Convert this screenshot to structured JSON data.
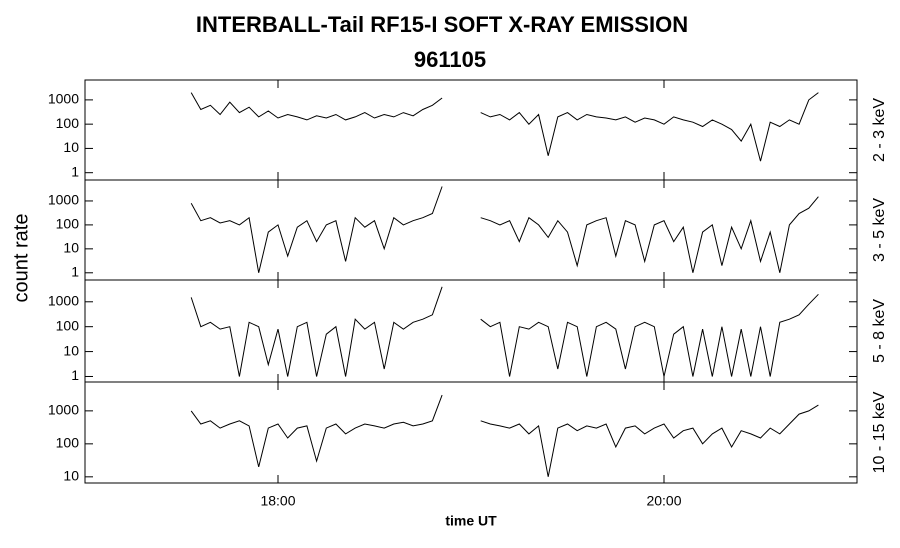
{
  "chart_data": [
    {
      "type": "line",
      "title": "INTERBALL-Tail RF15-I SOFT X-RAY EMISSION",
      "subtitle": "961105",
      "ylabel": "count rate",
      "label": "2 - 3 keV",
      "color": "#000000",
      "log": true,
      "xlim": [
        17,
        21
      ],
      "ylim": [
        0.5,
        6600
      ],
      "yticks": [
        1,
        10,
        100,
        1000
      ],
      "x": [
        17.55,
        17.6,
        17.65,
        17.7,
        17.75,
        17.8,
        17.85,
        17.9,
        17.95,
        18,
        18.05,
        18.1,
        18.15,
        18.2,
        18.25,
        18.3,
        18.35,
        18.4,
        18.45,
        18.5,
        18.55,
        18.6,
        18.65,
        18.7,
        18.75,
        18.8,
        18.85,
        18.95,
        19.05,
        19.1,
        19.15,
        19.2,
        19.25,
        19.3,
        19.35,
        19.4,
        19.45,
        19.5,
        19.55,
        19.6,
        19.65,
        19.7,
        19.75,
        19.8,
        19.85,
        19.9,
        19.95,
        20,
        20.05,
        20.1,
        20.15,
        20.2,
        20.25,
        20.3,
        20.35,
        20.4,
        20.45,
        20.5,
        20.55,
        20.6,
        20.65,
        20.7,
        20.75,
        20.8
      ],
      "values": [
        2000,
        400,
        600,
        250,
        800,
        300,
        500,
        200,
        350,
        180,
        250,
        200,
        150,
        220,
        180,
        250,
        150,
        200,
        300,
        180,
        250,
        200,
        300,
        220,
        400,
        600,
        1200,
        null,
        300,
        200,
        250,
        150,
        300,
        100,
        250,
        5,
        200,
        300,
        150,
        250,
        200,
        180,
        150,
        200,
        120,
        180,
        150,
        100,
        200,
        150,
        120,
        80,
        150,
        100,
        60,
        20,
        100,
        3,
        120,
        80,
        150,
        100,
        1000,
        2000
      ]
    },
    {
      "type": "line",
      "label": "3 - 5 keV",
      "color": "#000000",
      "log": true,
      "xlim": [
        17,
        21
      ],
      "ylim": [
        0.5,
        7500
      ],
      "yticks": [
        1,
        10,
        100,
        1000
      ],
      "x": [
        17.55,
        17.6,
        17.65,
        17.7,
        17.75,
        17.8,
        17.85,
        17.9,
        17.95,
        18,
        18.05,
        18.1,
        18.15,
        18.2,
        18.25,
        18.3,
        18.35,
        18.4,
        18.45,
        18.5,
        18.55,
        18.6,
        18.65,
        18.7,
        18.75,
        18.8,
        18.85,
        18.95,
        19.05,
        19.1,
        19.15,
        19.2,
        19.25,
        19.3,
        19.35,
        19.4,
        19.45,
        19.5,
        19.55,
        19.6,
        19.65,
        19.7,
        19.75,
        19.8,
        19.85,
        19.9,
        19.95,
        20,
        20.05,
        20.1,
        20.15,
        20.2,
        20.25,
        20.3,
        20.35,
        20.4,
        20.45,
        20.5,
        20.55,
        20.6,
        20.65,
        20.7,
        20.75,
        20.8
      ],
      "values": [
        800,
        150,
        200,
        120,
        150,
        100,
        200,
        1,
        50,
        100,
        5,
        80,
        150,
        20,
        100,
        150,
        3,
        200,
        80,
        150,
        10,
        200,
        100,
        150,
        200,
        300,
        4000,
        null,
        200,
        150,
        100,
        150,
        20,
        200,
        100,
        30,
        150,
        50,
        2,
        100,
        150,
        200,
        5,
        150,
        100,
        3,
        100,
        150,
        20,
        80,
        1,
        50,
        100,
        2,
        80,
        10,
        150,
        3,
        50,
        1,
        100,
        300,
        500,
        1500
      ]
    },
    {
      "type": "line",
      "label": "5 - 8 keV",
      "color": "#000000",
      "log": true,
      "xlim": [
        17,
        21
      ],
      "ylim": [
        0.6,
        7500
      ],
      "yticks": [
        1,
        10,
        100,
        1000
      ],
      "x": [
        17.55,
        17.6,
        17.65,
        17.7,
        17.75,
        17.8,
        17.85,
        17.9,
        17.95,
        18,
        18.05,
        18.1,
        18.15,
        18.2,
        18.25,
        18.3,
        18.35,
        18.4,
        18.45,
        18.5,
        18.55,
        18.6,
        18.65,
        18.7,
        18.75,
        18.8,
        18.85,
        18.95,
        19.05,
        19.1,
        19.15,
        19.2,
        19.25,
        19.3,
        19.35,
        19.4,
        19.45,
        19.5,
        19.55,
        19.6,
        19.65,
        19.7,
        19.75,
        19.8,
        19.85,
        19.9,
        19.95,
        20,
        20.05,
        20.1,
        20.15,
        20.2,
        20.25,
        20.3,
        20.35,
        20.4,
        20.45,
        20.5,
        20.55,
        20.6,
        20.65,
        20.7,
        20.75,
        20.8
      ],
      "values": [
        1500,
        100,
        150,
        80,
        100,
        1,
        150,
        100,
        3,
        80,
        1,
        100,
        150,
        1,
        50,
        100,
        1,
        200,
        80,
        150,
        2,
        150,
        80,
        150,
        200,
        300,
        4000,
        null,
        200,
        100,
        150,
        1,
        100,
        80,
        150,
        100,
        2,
        150,
        100,
        1,
        100,
        150,
        80,
        2,
        100,
        150,
        100,
        1,
        50,
        100,
        1,
        80,
        1,
        100,
        1,
        80,
        1,
        100,
        1,
        150,
        200,
        300,
        800,
        2000
      ]
    },
    {
      "type": "line",
      "label": "10 - 15 keV",
      "color": "#000000",
      "log": true,
      "xlabel": "time UT",
      "xlim": [
        17,
        21
      ],
      "xticks": [
        {
          "value": 18,
          "label": "18:00"
        },
        {
          "value": 20,
          "label": "20:00"
        }
      ],
      "ylim": [
        6.5,
        7500
      ],
      "yticks": [
        10,
        100,
        1000
      ],
      "x": [
        17.55,
        17.6,
        17.65,
        17.7,
        17.75,
        17.8,
        17.85,
        17.9,
        17.95,
        18,
        18.05,
        18.1,
        18.15,
        18.2,
        18.25,
        18.3,
        18.35,
        18.4,
        18.45,
        18.5,
        18.55,
        18.6,
        18.65,
        18.7,
        18.75,
        18.8,
        18.85,
        18.95,
        19.05,
        19.1,
        19.15,
        19.2,
        19.25,
        19.3,
        19.35,
        19.4,
        19.45,
        19.5,
        19.55,
        19.6,
        19.65,
        19.7,
        19.75,
        19.8,
        19.85,
        19.9,
        19.95,
        20,
        20.05,
        20.1,
        20.15,
        20.2,
        20.25,
        20.3,
        20.35,
        20.4,
        20.45,
        20.5,
        20.55,
        20.6,
        20.65,
        20.7,
        20.75,
        20.8
      ],
      "values": [
        1000,
        400,
        500,
        300,
        400,
        500,
        350,
        20,
        300,
        400,
        150,
        300,
        350,
        30,
        300,
        400,
        200,
        300,
        400,
        350,
        300,
        400,
        450,
        350,
        400,
        500,
        3000,
        null,
        500,
        400,
        350,
        300,
        400,
        200,
        350,
        10,
        300,
        400,
        250,
        350,
        300,
        400,
        80,
        300,
        350,
        200,
        300,
        400,
        150,
        250,
        300,
        100,
        200,
        300,
        80,
        250,
        200,
        150,
        300,
        200,
        400,
        800,
        1000,
        1500
      ]
    }
  ]
}
